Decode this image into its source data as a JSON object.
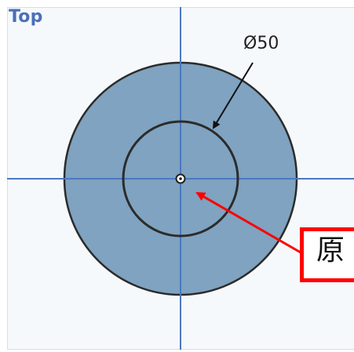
{
  "view": {
    "label": "Top"
  },
  "dimension": {
    "label": "Ø50"
  },
  "callout": {
    "text": "原"
  },
  "colors": {
    "disk_fill": "#7fa3c0",
    "outline": "#2b2b2b",
    "axis": "#4a78c2",
    "callout": "#ff0000"
  }
}
